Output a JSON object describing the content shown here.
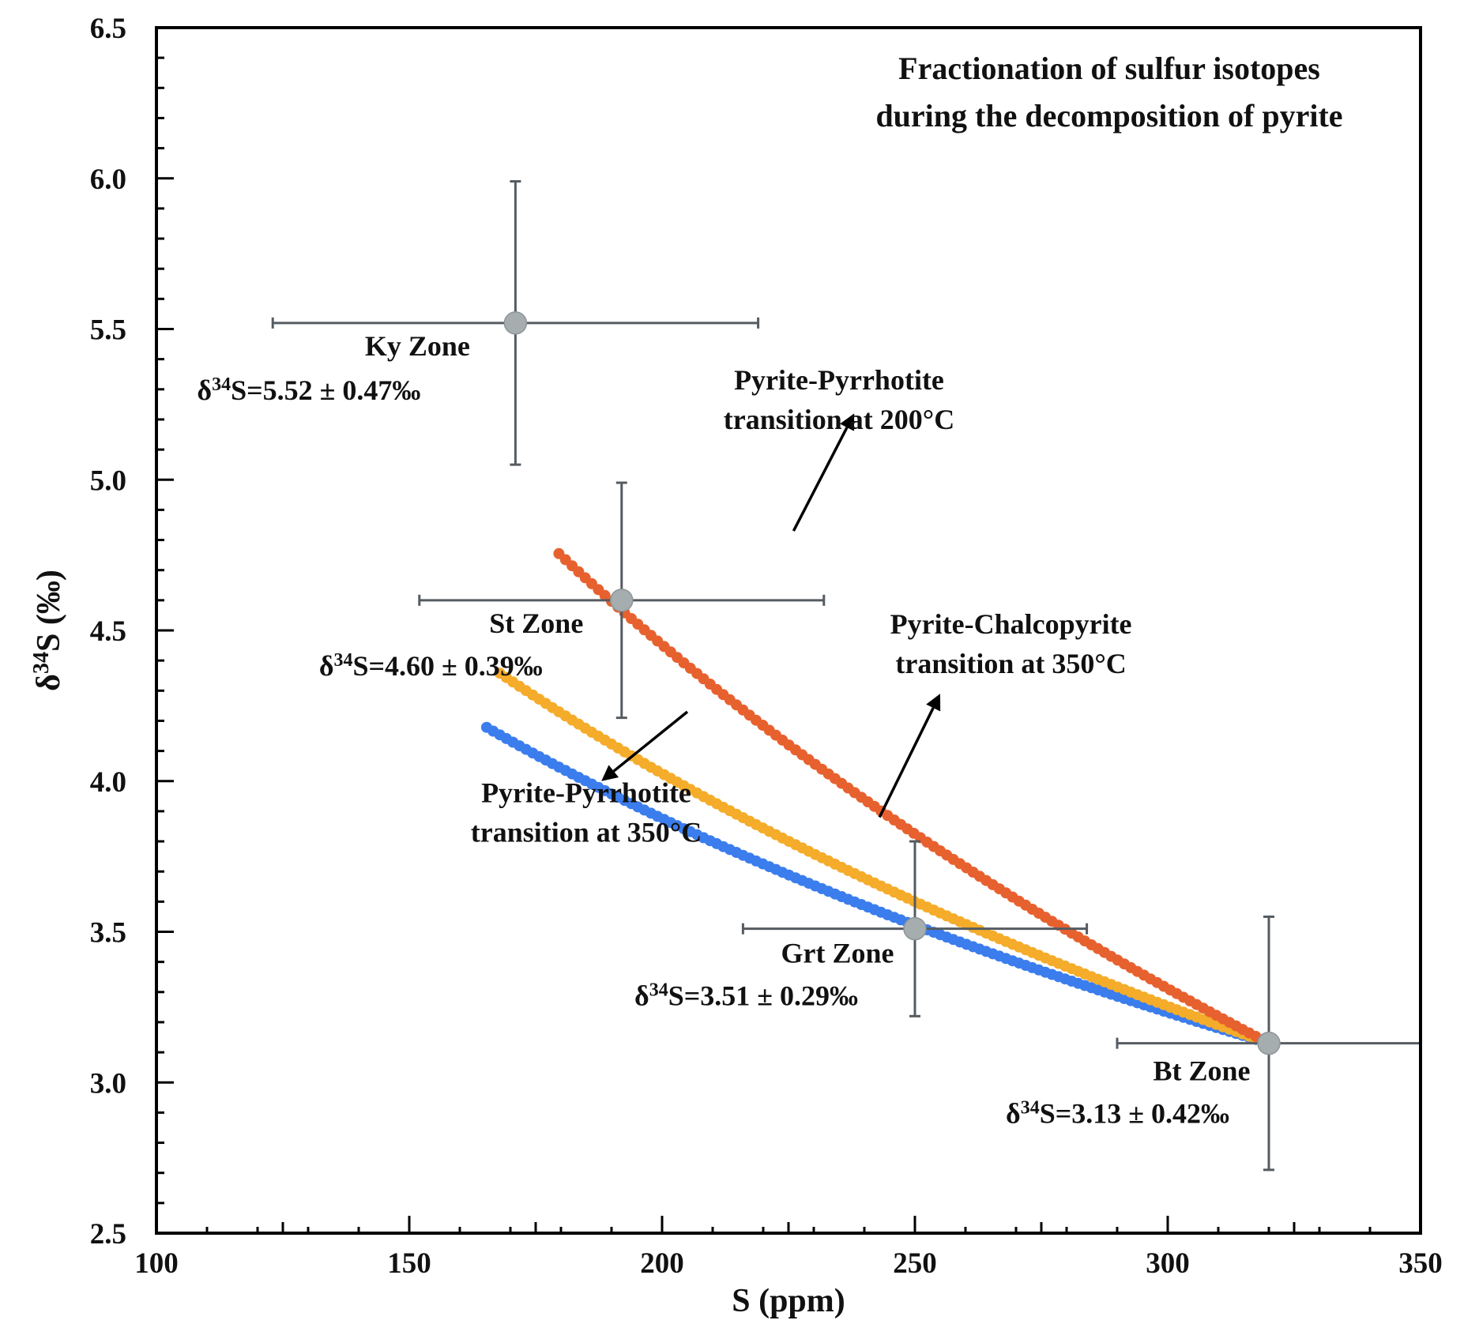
{
  "chart_data": {
    "type": "scatter",
    "title": [
      "Fractionation of sulfur isotopes",
      "during the decomposition of pyrite"
    ],
    "xlabel": "S (ppm)",
    "ylabel": "δ34S (‰)",
    "xlim": [
      100,
      350
    ],
    "ylim": [
      2.5,
      6.5
    ],
    "xticks": [
      100,
      150,
      200,
      250,
      300,
      350
    ],
    "yticks": [
      2.5,
      3.0,
      3.5,
      4.0,
      4.5,
      5.0,
      5.5,
      6.0,
      6.5
    ],
    "xtick_labels": [
      "100",
      "150",
      "200",
      "250",
      "300",
      "350"
    ],
    "ytick_labels": [
      "2.5",
      "3.0",
      "3.5",
      "4.0",
      "4.5",
      "5.0",
      "5.5",
      "6.0",
      "6.5"
    ],
    "grid": false,
    "legend": "none",
    "curves": [
      {
        "color": "#3b7ded",
        "s0": 320,
        "d0": 3.13,
        "dFrac": 1.1,
        "sEnd": 164.7,
        "step": 1.3
      },
      {
        "color": "#f4ac2a",
        "s0": 320,
        "d0": 3.13,
        "dFrac": 1.32,
        "sEnd": 167.9,
        "step": 1.3
      },
      {
        "color": "#e7612f",
        "s0": 320,
        "d0": 3.13,
        "dFrac": 1.95,
        "sEnd": 178.9,
        "step": 1.3
      }
    ],
    "samples": [
      {
        "name": "Ky Zone",
        "label_name": "Ky Zone",
        "label_value": "δ34S=5.52 ± 0.47‰",
        "x": 171,
        "y": 5.52,
        "x_err": 48,
        "y_err": 0.47
      },
      {
        "name": "St Zone",
        "label_name": "St Zone",
        "label_value": "δ34S=4.60 ± 0.39‰",
        "x": 192,
        "y": 4.6,
        "x_err": 40,
        "y_err": 0.39
      },
      {
        "name": "Grt Zone",
        "label_name": "Grt Zone",
        "label_value": "δ34S=3.51 ± 0.29‰",
        "x": 250,
        "y": 3.51,
        "x_err": 34,
        "y_err": 0.29
      },
      {
        "name": "Bt Zone",
        "label_name": "Bt Zone",
        "label_value": "δ34S=3.13 ± 0.42‰",
        "x": 320,
        "y": 3.13,
        "x_err": 30,
        "y_err": 0.42
      }
    ],
    "annotations": [
      {
        "lines": [
          "Pyrite-Pyrrhotite",
          "transition at 200°C"
        ],
        "x": 235,
        "y": 5.3
      },
      {
        "lines": [
          "Pyrite-Chalcopyrite",
          "transition at 350°C"
        ],
        "x": 269,
        "y": 4.49
      },
      {
        "lines": [
          "Pyrite-Pyrrhotite",
          "transition at 350°C"
        ],
        "x": 185,
        "y": 3.93
      }
    ],
    "colors": {
      "error_bars": "#555b61",
      "markers": "#a6adaf",
      "axis": "#000000"
    }
  }
}
